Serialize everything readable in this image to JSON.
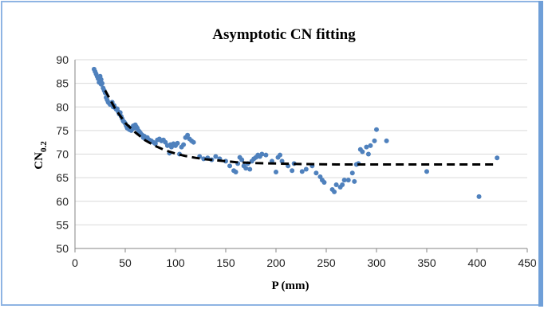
{
  "chart_data": {
    "type": "scatter",
    "title": "Asymptotic CN fitting",
    "xlabel": "P (mm)",
    "ylabel_main": "CN",
    "ylabel_sub": "0.2",
    "xlim": [
      0,
      450
    ],
    "ylim": [
      50,
      90
    ],
    "xticks": [
      0,
      50,
      100,
      150,
      200,
      250,
      300,
      350,
      400,
      450
    ],
    "yticks": [
      50,
      55,
      60,
      65,
      70,
      75,
      80,
      85,
      90
    ],
    "colors": {
      "points": "#4f81bd",
      "fit": "#000000",
      "frame": "#8eb4e3"
    },
    "points": [
      [
        19,
        88
      ],
      [
        20,
        87.5
      ],
      [
        21,
        87
      ],
      [
        22,
        86.5
      ],
      [
        23,
        86
      ],
      [
        24,
        85.2
      ],
      [
        25,
        86.5
      ],
      [
        26,
        85.8
      ],
      [
        26,
        84.8
      ],
      [
        27,
        85
      ],
      [
        28,
        84
      ],
      [
        29,
        83.5
      ],
      [
        30,
        83
      ],
      [
        31,
        82
      ],
      [
        32,
        81.5
      ],
      [
        33,
        81
      ],
      [
        34,
        80.8
      ],
      [
        35,
        80.5
      ],
      [
        36,
        80.7
      ],
      [
        37,
        81
      ],
      [
        38,
        80
      ],
      [
        39,
        80.3
      ],
      [
        40,
        79.8
      ],
      [
        41,
        79.5
      ],
      [
        42,
        79.6
      ],
      [
        43,
        79
      ],
      [
        44,
        78.5
      ],
      [
        45,
        78.8
      ],
      [
        46,
        78
      ],
      [
        47,
        77.5
      ],
      [
        48,
        77
      ],
      [
        49,
        76.8
      ],
      [
        50,
        76.5
      ],
      [
        51,
        76
      ],
      [
        52,
        75.5
      ],
      [
        53,
        75.8
      ],
      [
        54,
        75.2
      ],
      [
        55,
        75.5
      ],
      [
        56,
        75
      ],
      [
        57,
        75.3
      ],
      [
        58,
        76
      ],
      [
        59,
        75.5
      ],
      [
        60,
        76.2
      ],
      [
        61,
        75.8
      ],
      [
        62,
        75.5
      ],
      [
        63,
        75
      ],
      [
        64,
        74.8
      ],
      [
        65,
        74.5
      ],
      [
        66,
        74.2
      ],
      [
        67,
        74
      ],
      [
        68,
        73.5
      ],
      [
        69,
        73.8
      ],
      [
        70,
        73.2
      ],
      [
        72,
        73.5
      ],
      [
        74,
        73
      ],
      [
        76,
        72.8
      ],
      [
        78,
        72.5
      ],
      [
        80,
        72.2
      ],
      [
        82,
        73
      ],
      [
        84,
        73.2
      ],
      [
        86,
        72.8
      ],
      [
        88,
        73
      ],
      [
        90,
        72.5
      ],
      [
        92,
        71.8
      ],
      [
        94,
        70.2
      ],
      [
        95,
        72
      ],
      [
        96,
        71.5
      ],
      [
        98,
        72.2
      ],
      [
        100,
        71.8
      ],
      [
        102,
        72.3
      ],
      [
        104,
        70
      ],
      [
        106,
        71.5
      ],
      [
        108,
        72
      ],
      [
        110,
        73.5
      ],
      [
        112,
        74
      ],
      [
        114,
        73.2
      ],
      [
        116,
        72.8
      ],
      [
        118,
        72.5
      ],
      [
        124,
        69.5
      ],
      [
        128,
        69
      ],
      [
        132,
        69.2
      ],
      [
        136,
        68.8
      ],
      [
        140,
        69.5
      ],
      [
        144,
        69
      ],
      [
        150,
        68.5
      ],
      [
        154,
        67.5
      ],
      [
        158,
        66.5
      ],
      [
        160,
        66.2
      ],
      [
        162,
        68
      ],
      [
        164,
        69.3
      ],
      [
        166,
        68.8
      ],
      [
        168,
        67.5
      ],
      [
        170,
        67
      ],
      [
        172,
        68
      ],
      [
        174,
        66.8
      ],
      [
        176,
        68.5
      ],
      [
        178,
        69
      ],
      [
        180,
        69.3
      ],
      [
        182,
        69.8
      ],
      [
        184,
        69.5
      ],
      [
        186,
        70
      ],
      [
        190,
        69.8
      ],
      [
        196,
        68.5
      ],
      [
        200,
        66.2
      ],
      [
        202,
        69.3
      ],
      [
        204,
        69.8
      ],
      [
        206,
        68.5
      ],
      [
        212,
        67.5
      ],
      [
        216,
        66.5
      ],
      [
        218,
        68
      ],
      [
        226,
        66.3
      ],
      [
        230,
        66.8
      ],
      [
        236,
        67.5
      ],
      [
        240,
        66
      ],
      [
        244,
        65.2
      ],
      [
        246,
        64.5
      ],
      [
        248,
        64
      ],
      [
        256,
        62.5
      ],
      [
        258,
        62
      ],
      [
        260,
        63.5
      ],
      [
        264,
        63
      ],
      [
        266,
        63.5
      ],
      [
        268,
        64.5
      ],
      [
        272,
        64.5
      ],
      [
        276,
        66
      ],
      [
        278,
        64.2
      ],
      [
        280,
        67.8
      ],
      [
        282,
        68
      ],
      [
        284,
        71
      ],
      [
        286,
        70.5
      ],
      [
        290,
        71.5
      ],
      [
        292,
        70
      ],
      [
        294,
        71.8
      ],
      [
        298,
        72.8
      ],
      [
        300,
        75.2
      ],
      [
        310,
        72.8
      ],
      [
        350,
        66.3
      ],
      [
        402,
        61
      ],
      [
        420,
        69.2
      ]
    ],
    "fit": [
      [
        30,
        83.5
      ],
      [
        40,
        79.6
      ],
      [
        50,
        76.6
      ],
      [
        60,
        74.6
      ],
      [
        70,
        72.9
      ],
      [
        80,
        71.7
      ],
      [
        90,
        70.8
      ],
      [
        100,
        70.1
      ],
      [
        110,
        69.6
      ],
      [
        120,
        69.2
      ],
      [
        130,
        68.9
      ],
      [
        140,
        68.7
      ],
      [
        150,
        68.5
      ],
      [
        160,
        68.3
      ],
      [
        170,
        68.2
      ],
      [
        180,
        68.1
      ],
      [
        200,
        68.0
      ],
      [
        220,
        67.9
      ],
      [
        240,
        67.85
      ],
      [
        260,
        67.8
      ],
      [
        300,
        67.8
      ],
      [
        340,
        67.8
      ],
      [
        380,
        67.8
      ],
      [
        420,
        67.8
      ]
    ]
  }
}
